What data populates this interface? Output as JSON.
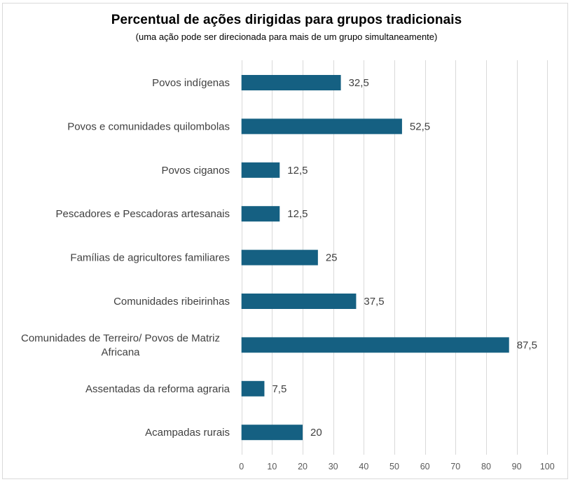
{
  "chart_data": {
    "type": "bar",
    "orientation": "horizontal",
    "title": "Percentual de ações dirigidas para grupos tradicionais",
    "subtitle": "(uma ação pode ser direcionada para mais de um grupo simultaneamente)",
    "categories": [
      [
        "Povos indígenas"
      ],
      [
        "Povos e comunidades quilombolas"
      ],
      [
        "Povos ciganos"
      ],
      [
        "Pescadores e Pescadoras artesanais"
      ],
      [
        "Famílias de agricultores familiares"
      ],
      [
        "Comunidades ribeirinhas"
      ],
      [
        "Comunidades de Terreiro/ Povos de Matriz",
        "Africana"
      ],
      [
        "Assentadas da reforma agraria"
      ],
      [
        "Acampadas rurais"
      ]
    ],
    "values": [
      32.5,
      52.5,
      12.5,
      12.5,
      25,
      37.5,
      87.5,
      7.5,
      20
    ],
    "data_labels": [
      "32,5",
      "52,5",
      "12,5",
      "12,5",
      "25",
      "37,5",
      "87,5",
      "7,5",
      "20"
    ],
    "xlabel": "",
    "ylabel": "",
    "xlim": [
      0,
      100
    ],
    "xticks": [
      0,
      10,
      20,
      30,
      40,
      50,
      60,
      70,
      80,
      90,
      100
    ],
    "xtick_labels": [
      "0",
      "10",
      "20",
      "30",
      "40",
      "50",
      "60",
      "70",
      "80",
      "90",
      "100"
    ],
    "grid": "vertical",
    "legend": "none",
    "colors": {
      "bar": "#156082",
      "grid": "#d9d9d9",
      "text": "#404040",
      "tick_text": "#595959",
      "border": "#d9d9d9"
    }
  }
}
